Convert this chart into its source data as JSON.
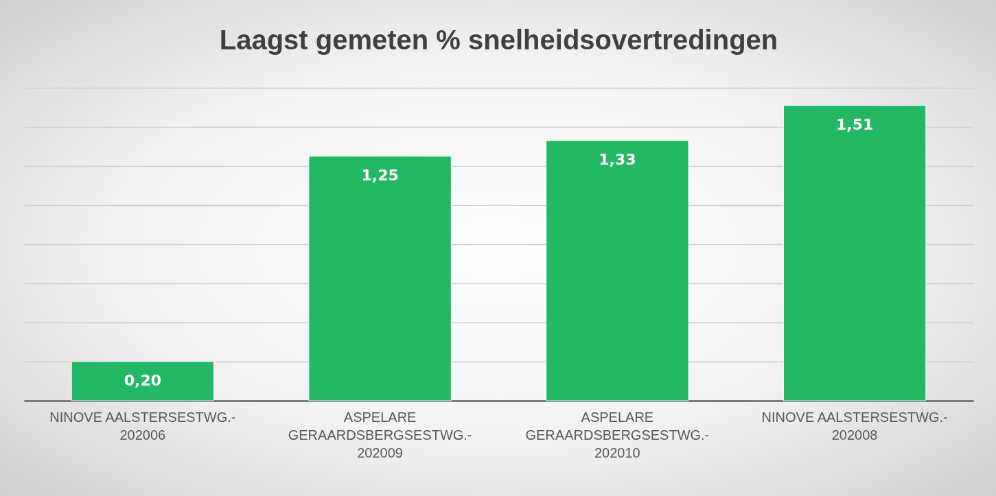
{
  "chart_data": {
    "type": "bar",
    "title": "Laagst gemeten % snelheidsovertredingen",
    "categories": [
      "NINOVE AALSTERSESTWG.- 202006",
      "ASPELARE GERAARDSBERGSESTWG.- 202009",
      "ASPELARE GERAARDSBERGSESTWG.- 202010",
      "NINOVE AALSTERSESTWG.- 202008"
    ],
    "values": [
      0.2,
      1.25,
      1.33,
      1.51
    ],
    "value_labels": [
      "0,20",
      "1,25",
      "1,33",
      "1,51"
    ],
    "color": "#22b864",
    "ylim": [
      0,
      1.6
    ],
    "yticks": [
      {
        "value": 0,
        "label": null
      },
      {
        "value": 0.2,
        "label": null
      },
      {
        "value": 0.4,
        "label": null
      },
      {
        "value": 0.6,
        "label": null
      },
      {
        "value": 0.8,
        "label": null
      },
      {
        "value": 1.0,
        "label": null
      },
      {
        "value": 1.2,
        "label": null
      },
      {
        "value": 1.4,
        "label": null
      },
      {
        "value": 1.6,
        "label": null
      }
    ],
    "grid": "y",
    "tick_labels": "x"
  }
}
